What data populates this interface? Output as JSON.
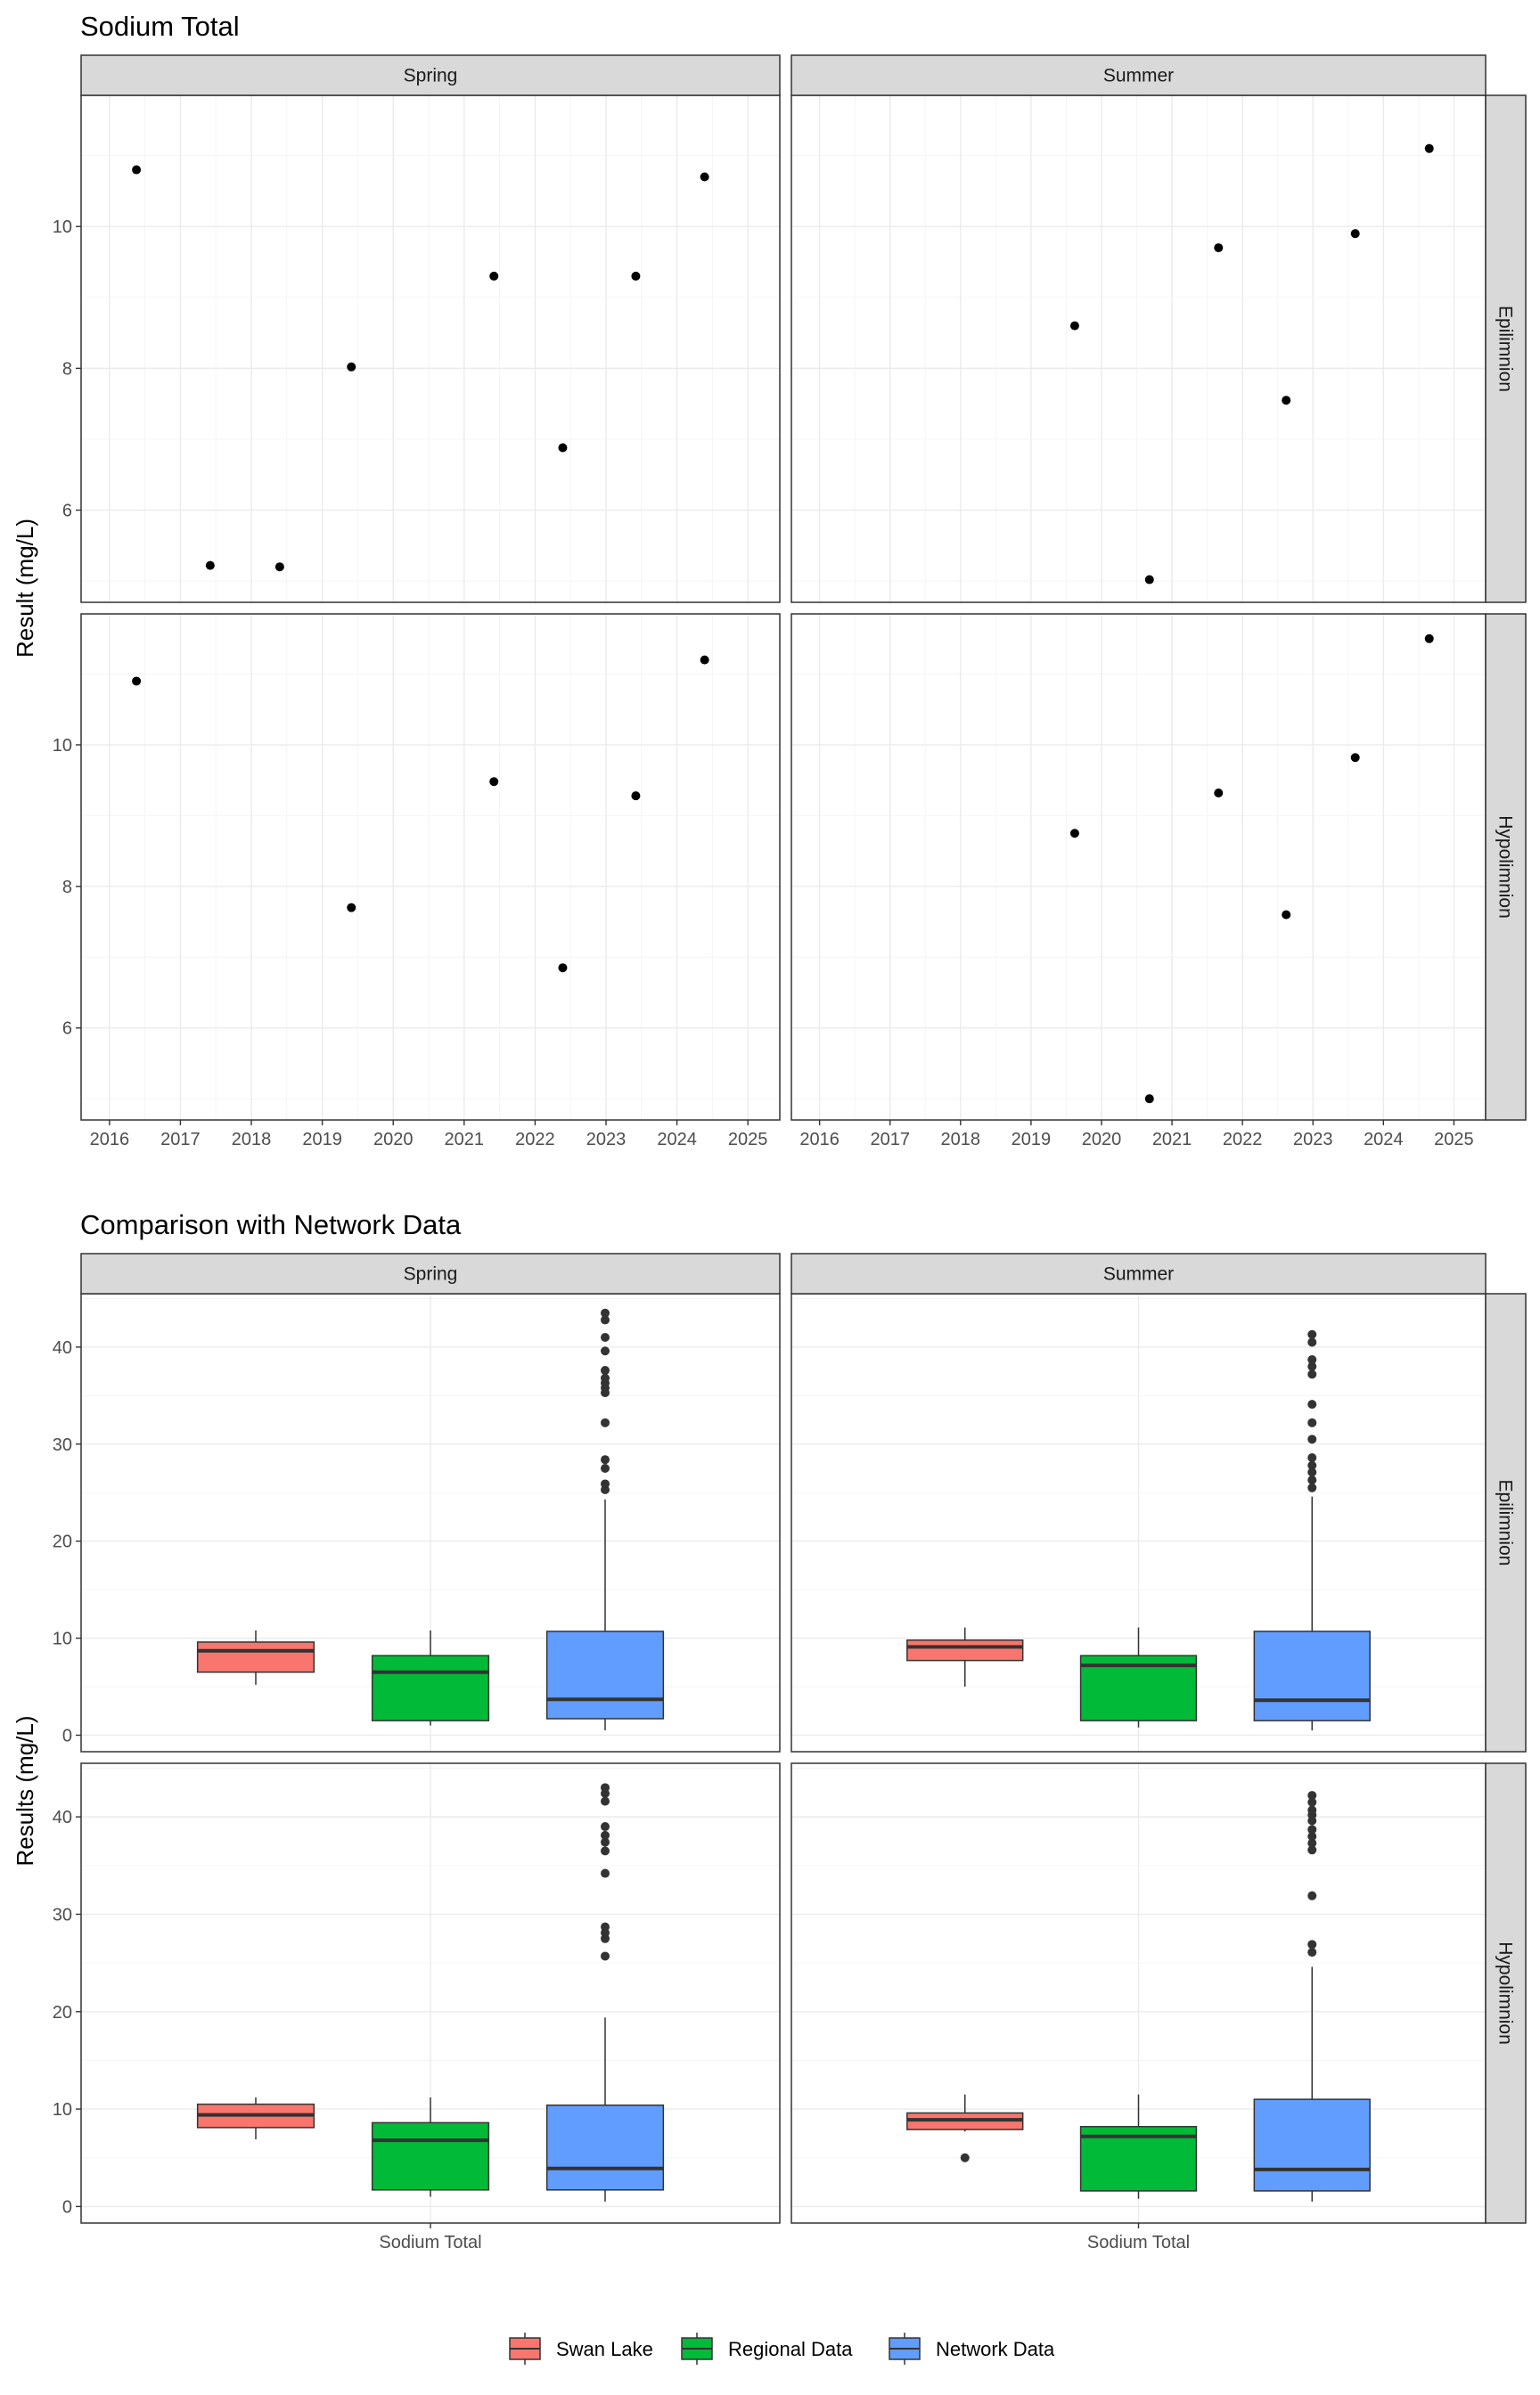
{
  "colors": {
    "swan_lake": "#F8766D",
    "regional": "#00BA38",
    "network": "#619CFF",
    "strip_fill": "#D9D9D9",
    "grid_major": "#EBEBEB",
    "grid_minor": "#F5F5F5",
    "panel_border": "#333333",
    "point": "#000000",
    "outlier": "#333333"
  },
  "legend": {
    "position": "bottom",
    "items": [
      {
        "label": "Swan Lake",
        "color": "#F8766D"
      },
      {
        "label": "Regional Data",
        "color": "#00BA38"
      },
      {
        "label": "Network Data",
        "color": "#619CFF"
      }
    ]
  },
  "chart_data": [
    {
      "type": "scatter",
      "title": "Sodium Total",
      "ylabel": "Result (mg/L)",
      "xlabel": "",
      "columns": [
        "Spring",
        "Summer"
      ],
      "rows": [
        "Epilimnion",
        "Hypolimnion"
      ],
      "x_ticks": [
        "2016",
        "2017",
        "2018",
        "2019",
        "2020",
        "2021",
        "2022",
        "2023",
        "2024",
        "2025"
      ],
      "xlim": [
        2015.6,
        2025.45
      ],
      "y_ticks": [
        6,
        8,
        10
      ],
      "grid": true,
      "facets": [
        {
          "row": "Epilimnion",
          "col": "Spring",
          "ylim": [
            4.7,
            11.85
          ],
          "points": [
            [
              2016.38,
              10.8
            ],
            [
              2017.42,
              5.22
            ],
            [
              2018.4,
              5.2
            ],
            [
              2019.41,
              8.02
            ],
            [
              2021.42,
              9.3
            ],
            [
              2022.39,
              6.88
            ],
            [
              2023.42,
              9.3
            ],
            [
              2024.39,
              10.7
            ]
          ]
        },
        {
          "row": "Epilimnion",
          "col": "Summer",
          "ylim": [
            4.7,
            11.85
          ],
          "points": [
            [
              2019.62,
              8.6
            ],
            [
              2020.68,
              5.02
            ],
            [
              2021.66,
              9.7
            ],
            [
              2022.62,
              7.55
            ],
            [
              2023.6,
              9.9
            ],
            [
              2024.65,
              11.1
            ]
          ]
        },
        {
          "row": "Hypolimnion",
          "col": "Spring",
          "ylim": [
            4.7,
            11.85
          ],
          "points": [
            [
              2016.38,
              10.9
            ],
            [
              2019.41,
              7.7
            ],
            [
              2021.42,
              9.48
            ],
            [
              2022.39,
              6.85
            ],
            [
              2023.42,
              9.28
            ],
            [
              2024.39,
              11.2
            ]
          ]
        },
        {
          "row": "Hypolimnion",
          "col": "Summer",
          "ylim": [
            4.7,
            11.85
          ],
          "points": [
            [
              2019.62,
              8.75
            ],
            [
              2020.68,
              5.0
            ],
            [
              2021.66,
              9.32
            ],
            [
              2022.62,
              7.6
            ],
            [
              2023.6,
              9.82
            ],
            [
              2024.65,
              11.5
            ]
          ]
        }
      ]
    },
    {
      "type": "box",
      "title": "Comparison with Network Data",
      "ylabel": "Results (mg/L)",
      "xlabel": "",
      "categories": [
        "Sodium Total"
      ],
      "columns": [
        "Spring",
        "Summer"
      ],
      "rows": [
        "Epilimnion",
        "Hypolimnion"
      ],
      "groups": [
        "Swan Lake",
        "Regional Data",
        "Network Data"
      ],
      "y_ticks": [
        0,
        10,
        20,
        30,
        40
      ],
      "ylim": [
        -1.7,
        45.5
      ],
      "grid": true,
      "facets": [
        {
          "row": "Epilimnion",
          "col": "Spring",
          "boxes": [
            {
              "group": "Swan Lake",
              "whisker_low": 5.2,
              "q1": 6.5,
              "median": 8.7,
              "q3": 9.6,
              "whisker_high": 10.8,
              "outliers": []
            },
            {
              "group": "Regional Data",
              "whisker_low": 1.0,
              "q1": 1.5,
              "median": 6.5,
              "q3": 8.2,
              "whisker_high": 10.8,
              "outliers": []
            },
            {
              "group": "Network Data",
              "whisker_low": 0.5,
              "q1": 1.7,
              "median": 3.7,
              "q3": 10.7,
              "whisker_high": 24.3,
              "outliers": [
                25.3,
                25.9,
                27.5,
                28.4,
                32.2,
                35.3,
                35.8,
                36.3,
                36.8,
                37.6,
                39.6,
                41.0,
                42.8,
                43.5
              ]
            }
          ]
        },
        {
          "row": "Epilimnion",
          "col": "Summer",
          "boxes": [
            {
              "group": "Swan Lake",
              "whisker_low": 5.0,
              "q1": 7.7,
              "median": 9.1,
              "q3": 9.8,
              "whisker_high": 11.1,
              "outliers": []
            },
            {
              "group": "Regional Data",
              "whisker_low": 0.8,
              "q1": 1.5,
              "median": 7.2,
              "q3": 8.2,
              "whisker_high": 11.1,
              "outliers": []
            },
            {
              "group": "Network Data",
              "whisker_low": 0.5,
              "q1": 1.5,
              "median": 3.6,
              "q3": 10.7,
              "whisker_high": 24.6,
              "outliers": [
                25.5,
                26.3,
                27.1,
                27.8,
                28.6,
                30.5,
                32.2,
                34.1,
                37.2,
                38.0,
                38.7,
                40.5,
                41.3
              ]
            }
          ]
        },
        {
          "row": "Hypolimnion",
          "col": "Spring",
          "boxes": [
            {
              "group": "Swan Lake",
              "whisker_low": 6.9,
              "q1": 8.1,
              "median": 9.4,
              "q3": 10.5,
              "whisker_high": 11.2,
              "outliers": []
            },
            {
              "group": "Regional Data",
              "whisker_low": 1.0,
              "q1": 1.7,
              "median": 6.8,
              "q3": 8.6,
              "whisker_high": 11.2,
              "outliers": []
            },
            {
              "group": "Network Data",
              "whisker_low": 0.5,
              "q1": 1.7,
              "median": 3.9,
              "q3": 10.4,
              "whisker_high": 19.4,
              "outliers": [
                25.7,
                27.5,
                28.1,
                28.7,
                34.2,
                36.5,
                37.4,
                38.1,
                39.0,
                41.6,
                42.4,
                43.0
              ]
            }
          ]
        },
        {
          "row": "Hypolimnion",
          "col": "Summer",
          "boxes": [
            {
              "group": "Swan Lake",
              "whisker_low": 7.7,
              "q1": 7.9,
              "median": 8.9,
              "q3": 9.6,
              "whisker_high": 11.5,
              "outliers": [
                5.0
              ]
            },
            {
              "group": "Regional Data",
              "whisker_low": 0.8,
              "q1": 1.6,
              "median": 7.2,
              "q3": 8.2,
              "whisker_high": 11.5,
              "outliers": []
            },
            {
              "group": "Network Data",
              "whisker_low": 0.5,
              "q1": 1.6,
              "median": 3.8,
              "q3": 11.0,
              "whisker_high": 24.6,
              "outliers": [
                26.1,
                26.9,
                31.9,
                36.6,
                37.3,
                38.0,
                38.7,
                39.6,
                40.2,
                40.7,
                41.5,
                42.2
              ]
            }
          ]
        }
      ]
    }
  ]
}
